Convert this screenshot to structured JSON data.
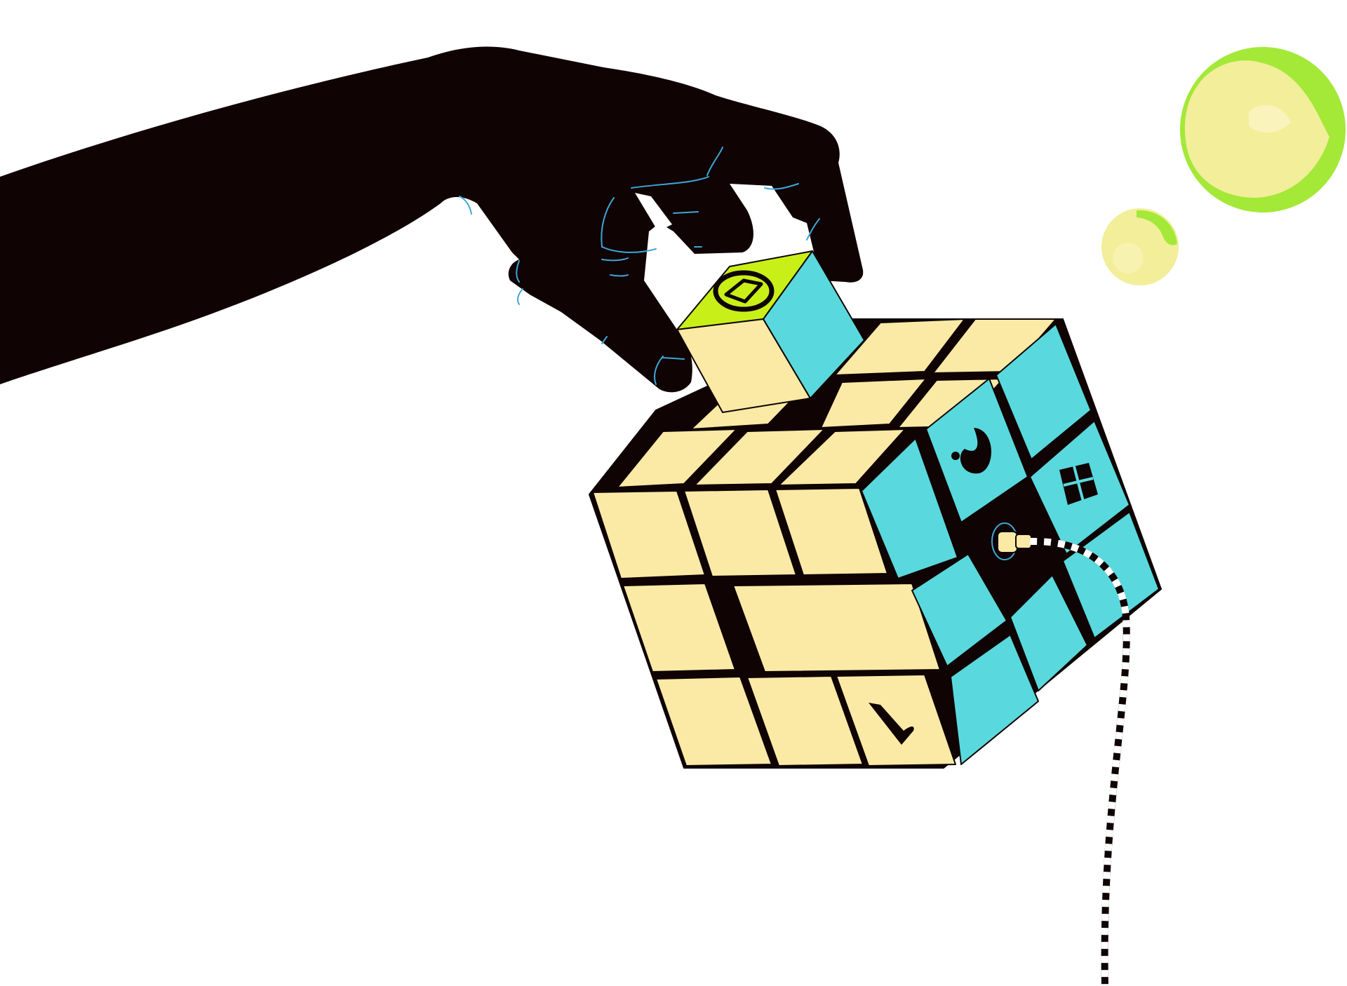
{
  "scene": {
    "description_visible_text": "",
    "icons": {
      "hand": "hand-silhouette-icon",
      "cube": "puzzle-cube-icon",
      "bubble_large": "bubble-icon",
      "bubble_small": "bubble-icon",
      "cable": "checkered-cable-icon",
      "top_symbol": "diamond-ring-icon",
      "dot_ring_symbol": "dot-ring-icon",
      "grid_symbol": "window-grid-icon",
      "check_symbol": "check-mark-icon"
    },
    "colors": {
      "background": "#ffffff",
      "hand": "#0f0303",
      "hand_lines": "#3fa7d6",
      "cream": "#faeaa6",
      "cyan": "#59d9dd",
      "lime": "#c8f018",
      "outline": "#0f0303",
      "bubble_green": "#a4e838",
      "bubble_inner": "#f2ee9a"
    }
  }
}
